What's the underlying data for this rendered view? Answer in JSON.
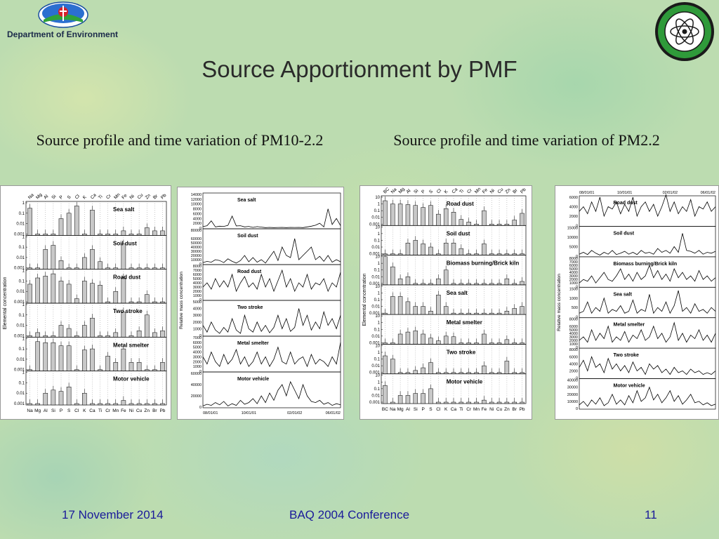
{
  "header": {
    "department": "Department of Environment",
    "left_logo_icon": "department-of-environment-logo-icon",
    "right_logo_icon": "atomic-energy-commission-seal-icon"
  },
  "slide": {
    "title": "Source Apportionment by PMF",
    "subtitle_left": "Source profile and time variation of PM10-2.2",
    "subtitle_right": "Source profile and time variation of PM2.2"
  },
  "footer": {
    "date": "17 November 2014",
    "conference": "BAQ 2004 Conference",
    "page_number": "11"
  },
  "colors": {
    "bar": "#c8c8c8",
    "line": "#000000",
    "footer_text": "#1a1a9a"
  },
  "chart_data": [
    {
      "type": "bar",
      "ylabel": "Elemental concentration",
      "categories": [
        "Na",
        "Mg",
        "Al",
        "Si",
        "P",
        "S",
        "Cl",
        "K",
        "Ca",
        "Ti",
        "Cr",
        "Mn",
        "Fe",
        "Ni",
        "Cu",
        "Zn",
        "Br",
        "Pb"
      ],
      "yscale": "log",
      "ylim": [
        0.001,
        1
      ],
      "yticks": [
        "1",
        "0.1",
        "0.01",
        "0.001"
      ],
      "series": [
        {
          "name": "Sea salt",
          "values": [
            0.3,
            0.001,
            0.001,
            0.001,
            0.03,
            0.1,
            0.5,
            0.001,
            0.2,
            0.001,
            0.001,
            0.001,
            0.002,
            0.001,
            0.001,
            0.004,
            0.002,
            0.002
          ]
        },
        {
          "name": "Soil dust",
          "values": [
            0.001,
            0.001,
            0.06,
            0.15,
            0.005,
            0.001,
            0.001,
            0.01,
            0.06,
            0.004,
            0.001,
            0.001,
            0.2,
            0.001,
            0.001,
            0.001,
            0.001,
            0.001
          ]
        },
        {
          "name": "Road dust",
          "values": [
            0.05,
            0.2,
            0.3,
            0.5,
            0.1,
            0.05,
            0.002,
            0.1,
            0.06,
            0.04,
            0.001,
            0.01,
            0.2,
            0.001,
            0.001,
            0.005,
            0.001,
            0.001
          ]
        },
        {
          "name": "Two stroke",
          "values": [
            0.001,
            0.002,
            0.001,
            0.001,
            0.01,
            0.005,
            0.001,
            0.01,
            0.05,
            0.001,
            0.001,
            0.002,
            0.2,
            0.001,
            0.003,
            0.1,
            0.002,
            0.003
          ]
        },
        {
          "name": "Metal smelter",
          "values": [
            0.001,
            0.5,
            0.4,
            0.4,
            0.2,
            0.2,
            0.001,
            0.08,
            0.1,
            0.001,
            0.02,
            0.005,
            0.1,
            0.005,
            0.005,
            0.001,
            0.001,
            0.005
          ]
        },
        {
          "name": "Motor vehicle",
          "values": [
            0.001,
            0.001,
            0.01,
            0.02,
            0.015,
            0.04,
            0.001,
            0.01,
            0.001,
            0.001,
            0.001,
            0.001,
            0.002,
            0.001,
            0.001,
            0.001,
            0.001,
            0.001
          ]
        }
      ]
    },
    {
      "type": "line",
      "ylabel": "Relative mass concentration",
      "x_ticks": [
        "08/01/01",
        "10/01/01",
        "02/01/02",
        "06/01/02"
      ],
      "series": [
        {
          "name": "Sea salt",
          "yticks": [
            0,
            2000,
            4000,
            6000,
            8000,
            10000,
            12000,
            14000
          ],
          "values": [
            600,
            1000,
            3000,
            500,
            800,
            700,
            1100,
            5000,
            900,
            1000,
            500,
            700,
            300,
            600,
            400,
            200,
            300,
            200,
            250,
            300,
            200,
            300,
            250,
            300,
            200,
            500,
            800,
            1200,
            2000,
            500,
            8000,
            1500,
            4000,
            1000
          ]
        },
        {
          "name": "Soil dust",
          "yticks": [
            0,
            10000,
            20000,
            30000,
            40000,
            50000,
            60000,
            80000
          ],
          "values": [
            3000,
            6000,
            4000,
            10000,
            8000,
            3000,
            12000,
            6000,
            2000,
            8000,
            20000,
            5000,
            15000,
            4000,
            10000,
            2000,
            16000,
            30000,
            8000,
            40000,
            20000,
            15000,
            60000,
            10000,
            20000,
            30000,
            40000,
            10000,
            18000,
            6000,
            20000,
            4000,
            10000,
            5000
          ]
        },
        {
          "name": "Road dust",
          "yticks": [
            0,
            1000,
            2000,
            3000,
            4000,
            5000,
            6000,
            7000,
            8000
          ],
          "values": [
            3000,
            4000,
            2500,
            5000,
            3000,
            4500,
            3000,
            6000,
            2000,
            4000,
            5500,
            3000,
            4000,
            2500,
            6000,
            3000,
            5000,
            2000,
            4500,
            7000,
            3000,
            5000,
            2000,
            4000,
            3000,
            6000,
            2500,
            4000,
            3500,
            5000,
            2000,
            4000,
            3000,
            6500
          ]
        },
        {
          "name": "Two stroke",
          "yticks": [
            0,
            1000,
            2000,
            3000,
            4000,
            5000
          ],
          "values": [
            1500,
            500,
            2000,
            800,
            300,
            1200,
            500,
            2500,
            800,
            300,
            3000,
            1000,
            500,
            2000,
            600,
            1500,
            400,
            1200,
            3000,
            1000,
            2500,
            600,
            1200,
            4000,
            1500,
            3000,
            800,
            2000,
            1000,
            3500,
            1500,
            2500,
            1000,
            3000
          ]
        },
        {
          "name": "Metal smelter",
          "yticks": [
            0,
            1000,
            2000,
            3000,
            4000,
            5000,
            6000,
            7000
          ],
          "values": [
            3000,
            1500,
            4000,
            2000,
            1000,
            3500,
            1500,
            2500,
            4500,
            1500,
            3000,
            1000,
            2000,
            4000,
            1500,
            3000,
            1000,
            2500,
            5000,
            2000,
            1500,
            4000,
            1500,
            2500,
            3000,
            1000,
            3500,
            1500,
            2500,
            2000,
            1000,
            3000,
            1500,
            6000
          ]
        },
        {
          "name": "Motor vehicle",
          "yticks": [
            0,
            20000,
            40000,
            60000
          ],
          "values": [
            2000,
            5000,
            3000,
            8000,
            4000,
            10000,
            2000,
            6000,
            3000,
            12000,
            5000,
            8000,
            15000,
            6000,
            20000,
            8000,
            25000,
            12000,
            30000,
            40000,
            20000,
            45000,
            30000,
            15000,
            40000,
            20000,
            10000,
            8000,
            12000,
            5000,
            8000,
            3000,
            6000,
            4000
          ]
        }
      ]
    },
    {
      "type": "bar",
      "ylabel": "Elemental concentration",
      "categories": [
        "BC",
        "Na",
        "Mg",
        "Al",
        "Si",
        "P",
        "S",
        "Cl",
        "K",
        "Ca",
        "Ti",
        "Cr",
        "Mn",
        "Fe",
        "Ni",
        "Cu",
        "Zn",
        "Br",
        "Pb"
      ],
      "yscale": "log",
      "ylim": [
        0.001,
        10
      ],
      "yticks": [
        "10",
        "1",
        "0.1",
        "0.01",
        "0.001"
      ],
      "series": [
        {
          "name": "Road dust",
          "values": [
            3,
            1,
            1,
            0.8,
            0.6,
            0.3,
            0.6,
            0.03,
            0.2,
            0.06,
            0.005,
            0.002,
            0.001,
            0.1,
            0.001,
            0.001,
            0.001,
            0.004,
            0.04
          ]
        },
        {
          "name": "Soil dust",
          "values": [
            0.001,
            0.001,
            0.001,
            0.04,
            0.1,
            0.03,
            0.01,
            0.001,
            0.04,
            0.04,
            0.006,
            0.001,
            0.001,
            0.03,
            0.001,
            0.001,
            0.001,
            0.001,
            0.001
          ]
        },
        {
          "name": "Biomass burning/Brick kiln",
          "values": [
            10,
            0.3,
            0.005,
            0.01,
            0.001,
            0.001,
            0.001,
            0.005,
            0.1,
            0.001,
            0.001,
            0.001,
            0.001,
            0.001,
            0.001,
            0.001,
            0.005,
            0.001,
            0.002
          ]
        },
        {
          "name": "Sea salt",
          "values": [
            0.001,
            0.3,
            0.3,
            0.05,
            0.01,
            0.01,
            0.002,
            0.5,
            0.01,
            0.001,
            0.001,
            0.001,
            0.001,
            0.001,
            0.001,
            0.001,
            0.002,
            0.005,
            0.01
          ]
        },
        {
          "name": "Metal smelter",
          "values": [
            0.001,
            0.001,
            0.02,
            0.04,
            0.06,
            0.02,
            0.005,
            0.002,
            0.01,
            0.008,
            0.001,
            0.001,
            0.001,
            0.02,
            0.001,
            0.001,
            0.003,
            0.001,
            0.001
          ]
        },
        {
          "name": "Two stroke",
          "values": [
            0.3,
            0.1,
            0.001,
            0.001,
            0.002,
            0.005,
            0.03,
            0.001,
            0.001,
            0.001,
            0.001,
            0.001,
            0.001,
            0.01,
            0.001,
            0.001,
            0.05,
            0.001,
            0.001
          ]
        },
        {
          "name": "Motor vehicle",
          "values": [
            0.3,
            0.001,
            0.01,
            0.01,
            0.02,
            0.02,
            0.1,
            0.001,
            0.001,
            0.001,
            0.001,
            0.001,
            0.001,
            0.002,
            0.001,
            0.001,
            0.001,
            0.001,
            0.001
          ]
        }
      ]
    },
    {
      "type": "line",
      "ylabel": "Relative mass concentration",
      "x_ticks": [
        "08/01/01",
        "10/01/01",
        "02/01/02",
        "06/01/02"
      ],
      "series": [
        {
          "name": "Road dust",
          "yticks": [
            0,
            2000,
            4000,
            6000
          ],
          "values": [
            3000,
            4000,
            2500,
            5000,
            3000,
            6000,
            2000,
            4000,
            3500,
            5000,
            2500,
            4500,
            3000,
            6000,
            2000,
            4000,
            5000,
            3000,
            4500,
            2000,
            4000,
            6500,
            3000,
            5000,
            2500,
            4000,
            3000,
            5500,
            2000,
            4000,
            3500,
            5000,
            3000,
            4000
          ]
        },
        {
          "name": "Soil dust",
          "yticks": [
            0,
            5000,
            10000,
            15000
          ],
          "values": [
            1000,
            2000,
            800,
            3000,
            1500,
            500,
            2000,
            1000,
            3000,
            800,
            1500,
            2500,
            1000,
            2000,
            800,
            3000,
            1500,
            2000,
            1000,
            4000,
            2000,
            3000,
            1500,
            5000,
            2000,
            12000,
            3000,
            2500,
            1500,
            3000,
            1000,
            2000,
            1500,
            2500
          ]
        },
        {
          "name": "Biomass burning/Brick kiln",
          "yticks": [
            0,
            1000,
            2000,
            3000,
            4000,
            5000,
            6000,
            7000,
            8000
          ],
          "values": [
            1000,
            2000,
            1500,
            3000,
            1000,
            2500,
            4000,
            2000,
            1500,
            3000,
            5000,
            2000,
            3500,
            1500,
            4000,
            2000,
            3000,
            6000,
            2500,
            4500,
            2000,
            3500,
            1500,
            5000,
            2500,
            4000,
            2000,
            3000,
            1500,
            4500,
            2000,
            3000,
            1500,
            2500
          ]
        },
        {
          "name": "Sea salt",
          "yticks": [
            0,
            500,
            1000,
            1500
          ],
          "values": [
            200,
            300,
            800,
            200,
            500,
            300,
            1000,
            200,
            400,
            300,
            600,
            200,
            300,
            900,
            200,
            400,
            300,
            1200,
            200,
            500,
            300,
            800,
            200,
            600,
            1400,
            300,
            500,
            200,
            700,
            300,
            400,
            200,
            500,
            300
          ]
        },
        {
          "name": "Metal smelter",
          "yticks": [
            0,
            1000,
            2000,
            3000,
            4000,
            5000,
            6000,
            8000
          ],
          "values": [
            2000,
            3000,
            1500,
            5000,
            2000,
            4000,
            2500,
            6000,
            1500,
            3000,
            2000,
            4500,
            1500,
            3500,
            2500,
            5000,
            2000,
            3000,
            6000,
            2500,
            4000,
            1500,
            3000,
            7000,
            2000,
            4000,
            1500,
            3500,
            2500,
            5000,
            2000,
            3500,
            1500,
            4000
          ]
        },
        {
          "name": "Two stroke",
          "yticks": [
            0,
            2000,
            4000,
            6000,
            8000
          ],
          "values": [
            3000,
            5000,
            2000,
            6000,
            3000,
            4000,
            1500,
            5500,
            2500,
            4000,
            2000,
            3500,
            1500,
            4500,
            2000,
            3000,
            1000,
            4000,
            2500,
            3500,
            1500,
            2500,
            1000,
            3000,
            1500,
            2000,
            1000,
            2500,
            1500,
            2000,
            1000,
            1500,
            1000,
            2000
          ]
        },
        {
          "name": "Motor vehicle",
          "yticks": [
            0,
            10000,
            20000,
            30000,
            40000
          ],
          "values": [
            5000,
            10000,
            3000,
            12000,
            6000,
            15000,
            4000,
            8000,
            20000,
            6000,
            12000,
            5000,
            18000,
            8000,
            25000,
            10000,
            15000,
            30000,
            12000,
            20000,
            8000,
            15000,
            25000,
            10000,
            18000,
            6000,
            12000,
            20000,
            8000,
            10000,
            5000,
            8000,
            4000,
            6000
          ]
        }
      ]
    }
  ]
}
